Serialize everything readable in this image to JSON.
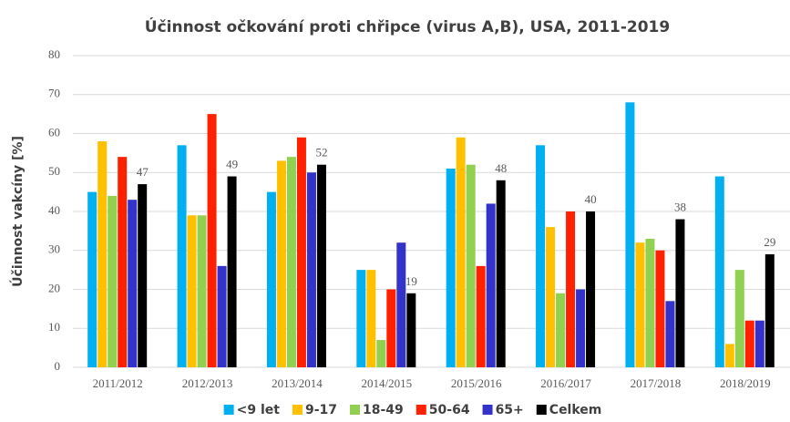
{
  "chart_data": {
    "type": "bar",
    "title": "Účinnost očkování proti chřipce (virus A,B), USA, 2011-2019",
    "y_label": "Účinnost vakcíny [%]",
    "categories": [
      "2011/2012",
      "2012/2013",
      "2013/2014",
      "2014/2015",
      "2015/2016",
      "2016/2017",
      "2017/2018",
      "2018/2019"
    ],
    "series": [
      {
        "name": "<9 let",
        "color": "#00b0f0",
        "values": [
          45,
          57,
          45,
          25,
          51,
          57,
          68,
          49
        ]
      },
      {
        "name": "9-17",
        "color": "#ffc000",
        "values": [
          58,
          39,
          53,
          25,
          59,
          36,
          32,
          6
        ]
      },
      {
        "name": "18-49",
        "color": "#92d050",
        "values": [
          44,
          39,
          54,
          7,
          52,
          19,
          33,
          25
        ]
      },
      {
        "name": "50-64",
        "color": "#ff2000",
        "values": [
          54,
          65,
          59,
          20,
          26,
          40,
          30,
          12
        ]
      },
      {
        "name": "65+",
        "color": "#3333cc",
        "values": [
          43,
          26,
          50,
          32,
          42,
          20,
          17,
          12
        ]
      },
      {
        "name": "Celkem",
        "color": "#000000",
        "values": [
          47,
          49,
          52,
          19,
          48,
          40,
          38,
          29
        ],
        "data_labels": true
      }
    ],
    "ylim": [
      0,
      80
    ],
    "yticks": [
      0,
      10,
      20,
      30,
      40,
      50,
      60,
      70,
      80
    ],
    "grid": true,
    "legend": "bottom"
  }
}
